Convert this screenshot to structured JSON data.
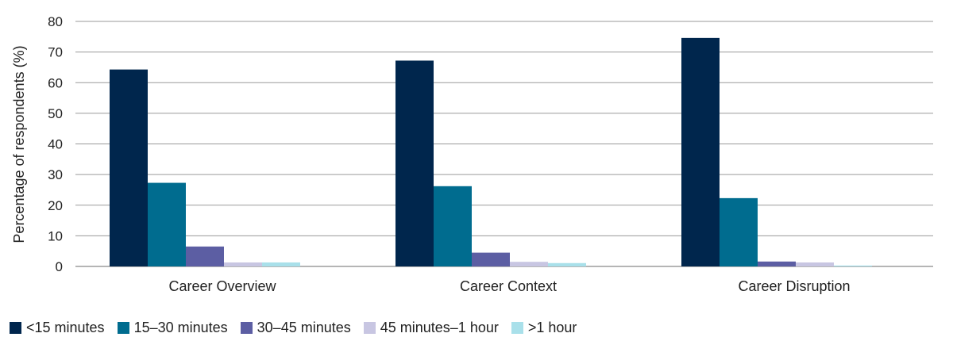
{
  "chart_data": {
    "type": "bar",
    "title": "",
    "xlabel": "",
    "ylabel": "Percentage of respondents (%)",
    "ylim": [
      0,
      80
    ],
    "yticks": [
      0,
      10,
      20,
      30,
      40,
      50,
      60,
      70,
      80
    ],
    "grid": true,
    "legend_position": "bottom-left",
    "categories": [
      "Career Overview",
      "Career Context",
      "Career Disruption"
    ],
    "series": [
      {
        "name": "<15 minutes",
        "color": "#00264d",
        "values": [
          64.3,
          67.2,
          74.6
        ]
      },
      {
        "name": "15–30 minutes",
        "color": "#006c8f",
        "values": [
          27.3,
          26.2,
          22.3
        ]
      },
      {
        "name": "30–45 minutes",
        "color": "#5c5ea3",
        "values": [
          6.5,
          4.5,
          1.6
        ]
      },
      {
        "name": "45 minutes–1 hour",
        "color": "#c8c6e2",
        "values": [
          1.3,
          1.5,
          1.3
        ]
      },
      {
        "name": ">1 hour",
        "color": "#a9e0ea",
        "values": [
          1.3,
          1.1,
          0.3
        ]
      }
    ]
  }
}
